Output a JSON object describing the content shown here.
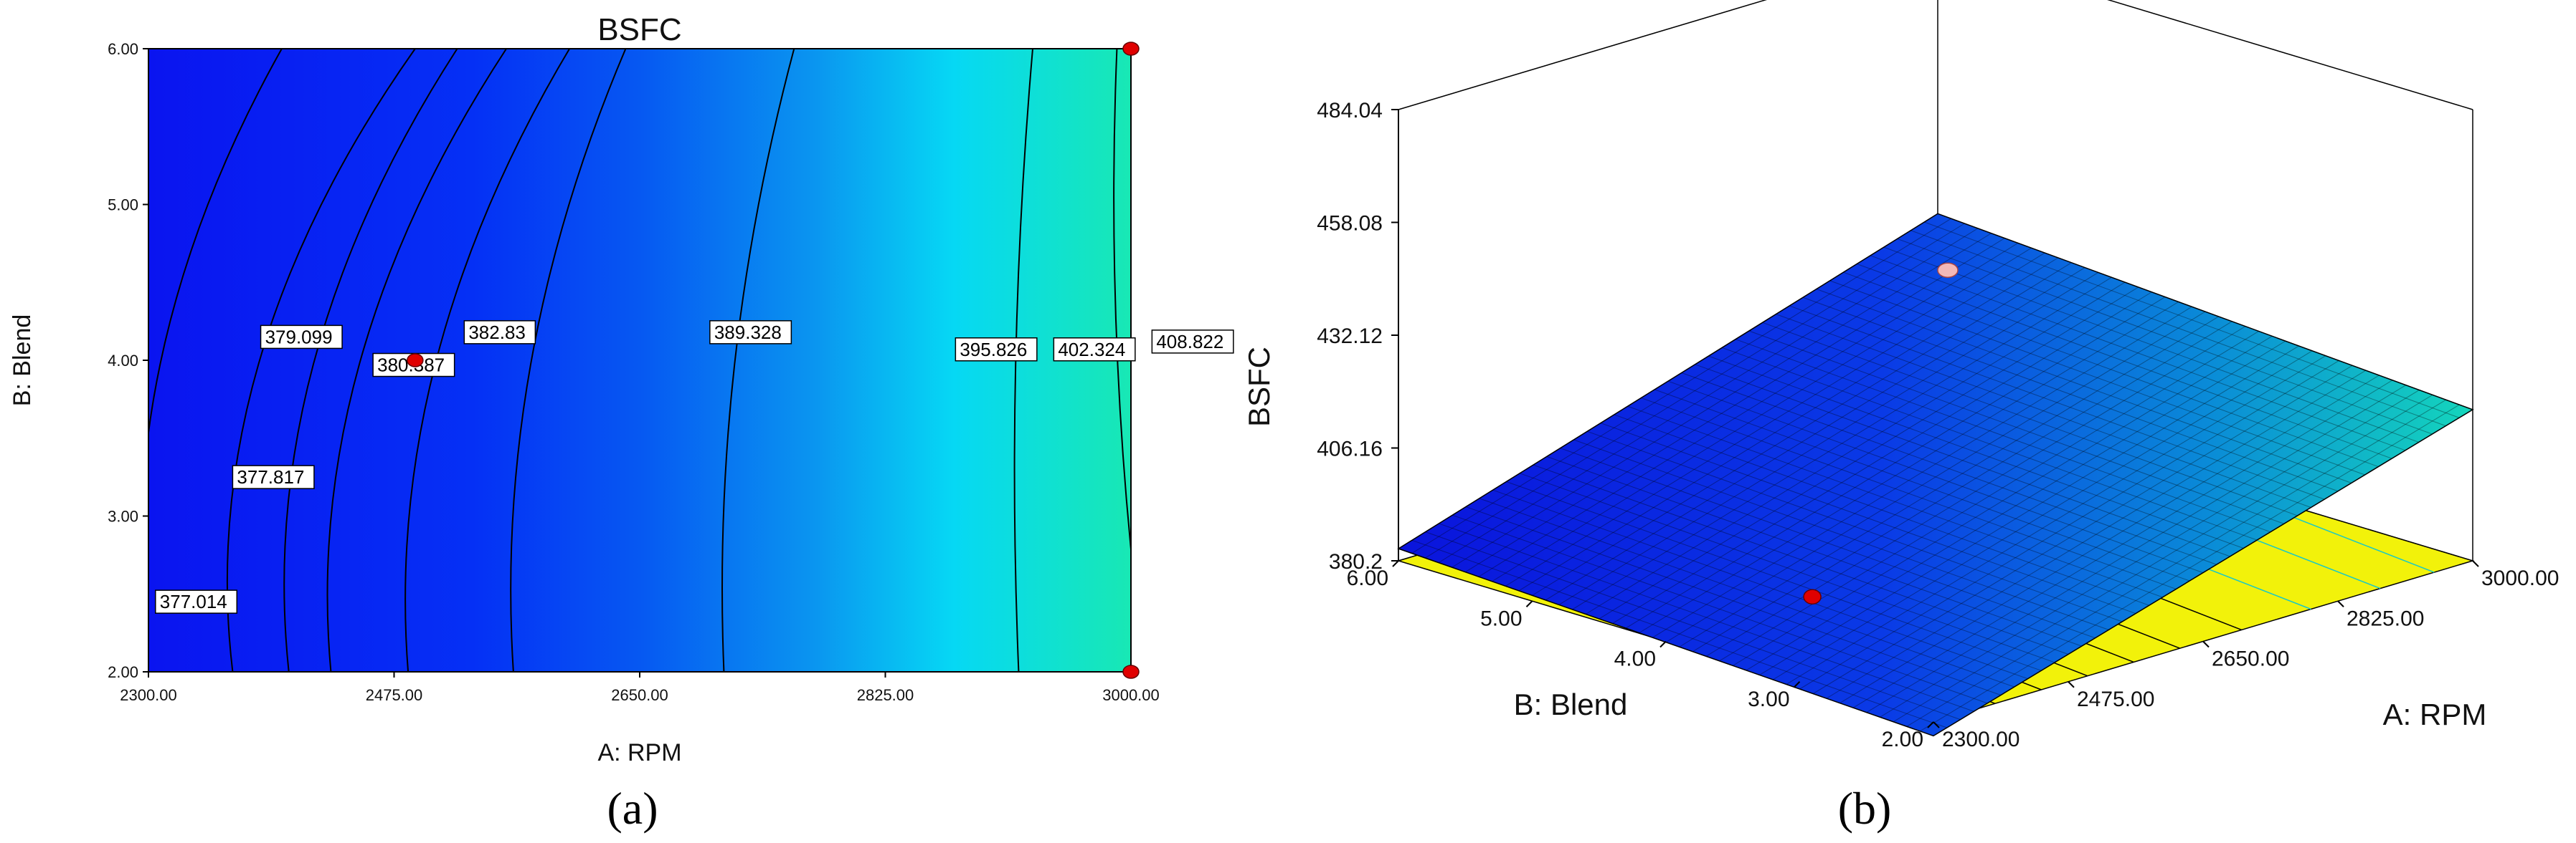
{
  "chart_data": [
    {
      "type": "contour",
      "title": "BSFC",
      "panel_label": "(a)",
      "xlabel": "A: RPM",
      "ylabel": "B: Blend",
      "xlim": [
        2300,
        3000
      ],
      "ylim": [
        2,
        6
      ],
      "x_ticks": [
        "2300.00",
        "2475.00",
        "2650.00",
        "2825.00",
        "3000.00"
      ],
      "y_ticks": [
        "2.00",
        "3.00",
        "4.00",
        "5.00",
        "6.00"
      ],
      "contour_levels": [
        {
          "label": "377.014",
          "at": [
            2305,
            2.45
          ]
        },
        {
          "label": "377.817",
          "at": [
            2360,
            3.25
          ]
        },
        {
          "label": "379.099",
          "at": [
            2380,
            4.15
          ]
        },
        {
          "label": "380.387",
          "at": [
            2460,
            3.97
          ]
        },
        {
          "label": "382.83",
          "at": [
            2525,
            4.18
          ]
        },
        {
          "label": "389.328",
          "at": [
            2700,
            4.18
          ]
        },
        {
          "label": "395.826",
          "at": [
            2875,
            4.07
          ]
        },
        {
          "label": "402.324",
          "at": [
            2945,
            4.07
          ]
        },
        {
          "label": "408.822",
          "at": [
            3015,
            4.12
          ]
        }
      ],
      "design_points": [
        {
          "x": 2490,
          "y": 4.0
        },
        {
          "x": 3000,
          "y": 6.0
        },
        {
          "x": 3000,
          "y": 2.0
        }
      ],
      "grid": false
    },
    {
      "type": "surface3d",
      "panel_label": "(b)",
      "zlabel": "BSFC",
      "xlabel": "A: RPM",
      "ylabel": "B: Blend",
      "xlim": [
        2300,
        3000
      ],
      "ylim": [
        2,
        6
      ],
      "zlim": [
        380.2,
        484.04
      ],
      "x_ticks": [
        "2300.00",
        "2475.00",
        "2650.00",
        "2825.00",
        "3000.00"
      ],
      "y_ticks": [
        "2.00",
        "3.00",
        "4.00",
        "5.00",
        "6.00"
      ],
      "z_ticks": [
        "380.2",
        "406.16",
        "432.12",
        "458.08",
        "484.04"
      ],
      "surface_corners": [
        {
          "x": 2300,
          "y": 2,
          "z": 377
        },
        {
          "x": 3000,
          "y": 2,
          "z": 415
        },
        {
          "x": 3000,
          "y": 6,
          "z": 423
        },
        {
          "x": 2300,
          "y": 6,
          "z": 383
        }
      ],
      "design_points": [
        {
          "x": 2490,
          "y": 4.0,
          "z": 380.4
        },
        {
          "x": 3000,
          "y": 6.0,
          "z": 410
        }
      ]
    }
  ]
}
